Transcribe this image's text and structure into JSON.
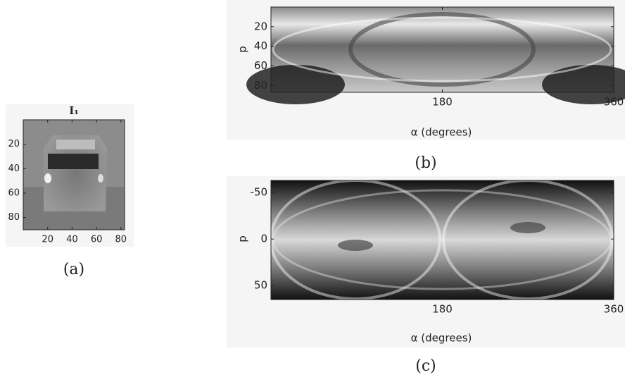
{
  "chart_data": [
    {
      "type": "image",
      "title": "I₁",
      "xlim": [
        0,
        83
      ],
      "ylim": [
        0,
        90
      ],
      "xticks": [
        20,
        40,
        60,
        80
      ],
      "yticks": [
        20,
        40,
        60,
        80
      ],
      "caption": "(a)"
    },
    {
      "type": "image",
      "xlim": [
        0,
        360
      ],
      "ylim": [
        0,
        87
      ],
      "xticks": [
        180,
        360
      ],
      "yticks": [
        20,
        40,
        60,
        80
      ],
      "xlabel": "α (degrees)",
      "ylabel": "p",
      "caption": "(b)"
    },
    {
      "type": "image",
      "xlim": [
        0,
        360
      ],
      "ylim": [
        -63,
        65
      ],
      "xticks": [
        180,
        360
      ],
      "yticks": [
        -50,
        0,
        50
      ],
      "xlabel": "α (degrees)",
      "ylabel": "p",
      "caption": "(c)"
    }
  ]
}
